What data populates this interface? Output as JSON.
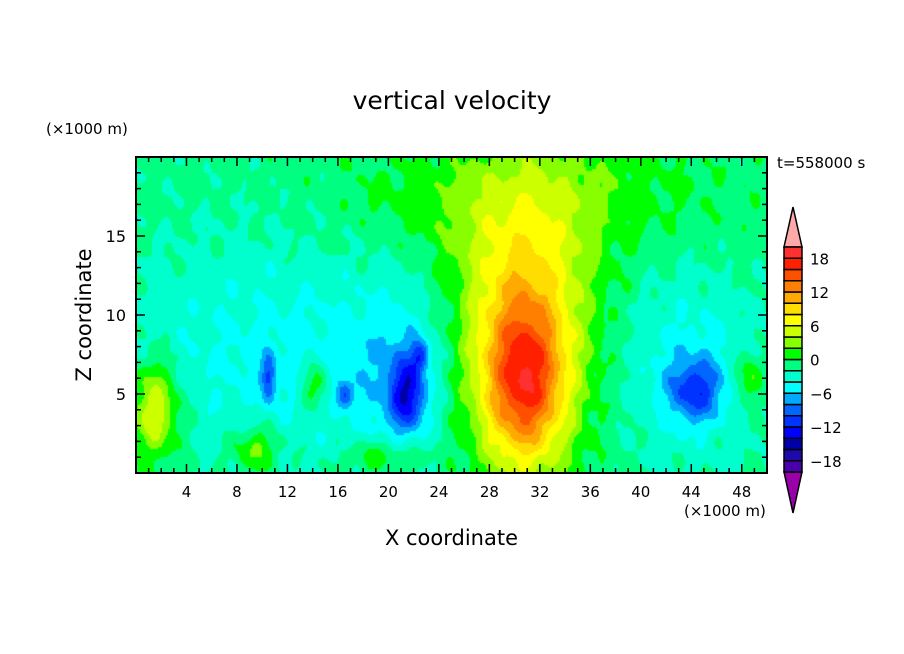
{
  "chart_data": {
    "type": "heatmap",
    "title": "vertical velocity",
    "xlabel": "X coordinate",
    "ylabel": "Z coordinate",
    "x_unit": "(×1000 m)",
    "y_unit": "(×1000 m)",
    "time_label": "t=558000 s",
    "xlim": [
      0,
      50
    ],
    "ylim": [
      0,
      20
    ],
    "x_ticks": [
      4,
      8,
      12,
      16,
      20,
      24,
      28,
      32,
      36,
      40,
      44,
      48
    ],
    "x_tick_labels": [
      "4",
      "8",
      "12",
      "16",
      "20",
      "24",
      "28",
      "32",
      "36",
      "40",
      "44",
      "48"
    ],
    "y_ticks": [
      5,
      10,
      15
    ],
    "y_tick_labels": [
      "5",
      "10",
      "15"
    ],
    "colorbar": {
      "levels": [
        -20,
        -18,
        -16,
        -14,
        -12,
        -10,
        -8,
        -6,
        -4,
        -2,
        0,
        2,
        4,
        6,
        8,
        10,
        12,
        14,
        16,
        18,
        20
      ],
      "colors": [
        "#4a00aa",
        "#1e0aa8",
        "#0000aa",
        "#0000ff",
        "#0033ff",
        "#0066ff",
        "#00aaff",
        "#00ffff",
        "#00ffcc",
        "#00ff80",
        "#00ff00",
        "#88ff00",
        "#ccff00",
        "#ffff00",
        "#ffdd00",
        "#ffaa00",
        "#ff8000",
        "#ff5000",
        "#ff2000",
        "#ff3030"
      ],
      "over_color": "#ffaaaa",
      "under_color": "#9900aa",
      "tick_values": [
        18,
        12,
        6,
        0,
        -6,
        -12,
        -18
      ],
      "tick_labels": [
        "18",
        "12",
        "6",
        "0",
        "−6",
        "−12",
        "−18"
      ]
    },
    "field_features": [
      {
        "x": 30.8,
        "z": 5.5,
        "sx": 2.2,
        "sz": 3.5,
        "amp": 12
      },
      {
        "x": 30.5,
        "z": 8.5,
        "sx": 3.8,
        "sz": 5.5,
        "amp": 9
      },
      {
        "x": 31.0,
        "z": 14.5,
        "sx": 3.5,
        "sz": 4.0,
        "amp": 3
      },
      {
        "x": 1.5,
        "z": 4.0,
        "sx": 1.4,
        "sz": 2.2,
        "amp": 8
      },
      {
        "x": 9.5,
        "z": 1.5,
        "sx": 1.3,
        "sz": 1.0,
        "amp": 5
      },
      {
        "x": 14.2,
        "z": 5.5,
        "sx": 0.8,
        "sz": 1.0,
        "amp": 5
      },
      {
        "x": 48.5,
        "z": 6.0,
        "sx": 0.8,
        "sz": 1.2,
        "amp": 5
      },
      {
        "x": 19.5,
        "z": 1.0,
        "sx": 2.0,
        "sz": 0.8,
        "amp": 4
      },
      {
        "x": 34.0,
        "z": 18.0,
        "sx": 8.0,
        "sz": 3.0,
        "amp": 2.5
      },
      {
        "x": 22.0,
        "z": 17.0,
        "sx": 5.0,
        "sz": 2.5,
        "amp": 1.5
      },
      {
        "x": 21.5,
        "z": 5.0,
        "sx": 1.0,
        "sz": 1.6,
        "amp": -9
      },
      {
        "x": 44.3,
        "z": 5.2,
        "sx": 1.4,
        "sz": 1.3,
        "amp": -7
      },
      {
        "x": 10.5,
        "z": 6.0,
        "sx": 0.4,
        "sz": 1.0,
        "amp": -7
      },
      {
        "x": 16.5,
        "z": 5.0,
        "sx": 0.5,
        "sz": 0.6,
        "amp": -6
      },
      {
        "x": 22.5,
        "z": 7.5,
        "sx": 0.5,
        "sz": 0.7,
        "amp": -6
      },
      {
        "x": 12.0,
        "z": 7.5,
        "sx": 10.0,
        "sz": 5.0,
        "amp": -3.5
      },
      {
        "x": 44.0,
        "z": 6.5,
        "sx": 4.0,
        "sz": 4.0,
        "amp": -4
      },
      {
        "x": 21.0,
        "z": 6.0,
        "sx": 2.5,
        "sz": 4.0,
        "amp": -3
      }
    ],
    "background_value": -1.2
  }
}
